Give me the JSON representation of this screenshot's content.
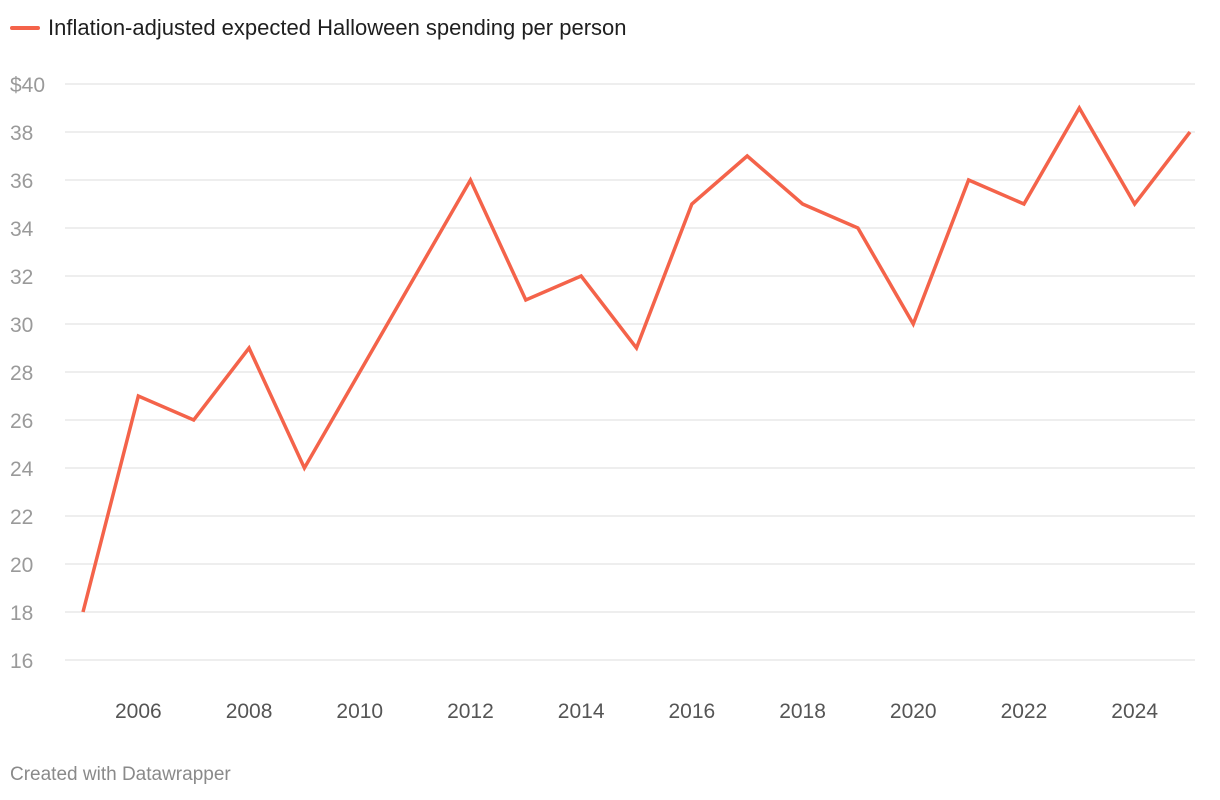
{
  "chart_data": {
    "type": "line",
    "legend": {
      "position": "top-left"
    },
    "x": [
      2005,
      2006,
      2007,
      2008,
      2009,
      2010,
      2011,
      2012,
      2013,
      2014,
      2015,
      2016,
      2017,
      2018,
      2019,
      2020,
      2021,
      2022,
      2023,
      2024,
      2025
    ],
    "series": [
      {
        "name": "Inflation-adjusted expected Halloween spending per person",
        "values": [
          18,
          27,
          26,
          29,
          24,
          28,
          32,
          36,
          31,
          32,
          29,
          35,
          37,
          35,
          34,
          30,
          36,
          35,
          39,
          35,
          38
        ],
        "color": "#f4634a"
      }
    ],
    "ylim": [
      16,
      40
    ],
    "y_ticks": [
      "$40",
      "38",
      "36",
      "34",
      "32",
      "30",
      "28",
      "26",
      "24",
      "22",
      "20",
      "18",
      "16"
    ],
    "x_ticks": [
      "2006",
      "2008",
      "2010",
      "2012",
      "2014",
      "2016",
      "2018",
      "2020",
      "2022",
      "2024"
    ],
    "grid": true
  },
  "footer": "Created with Datawrapper"
}
